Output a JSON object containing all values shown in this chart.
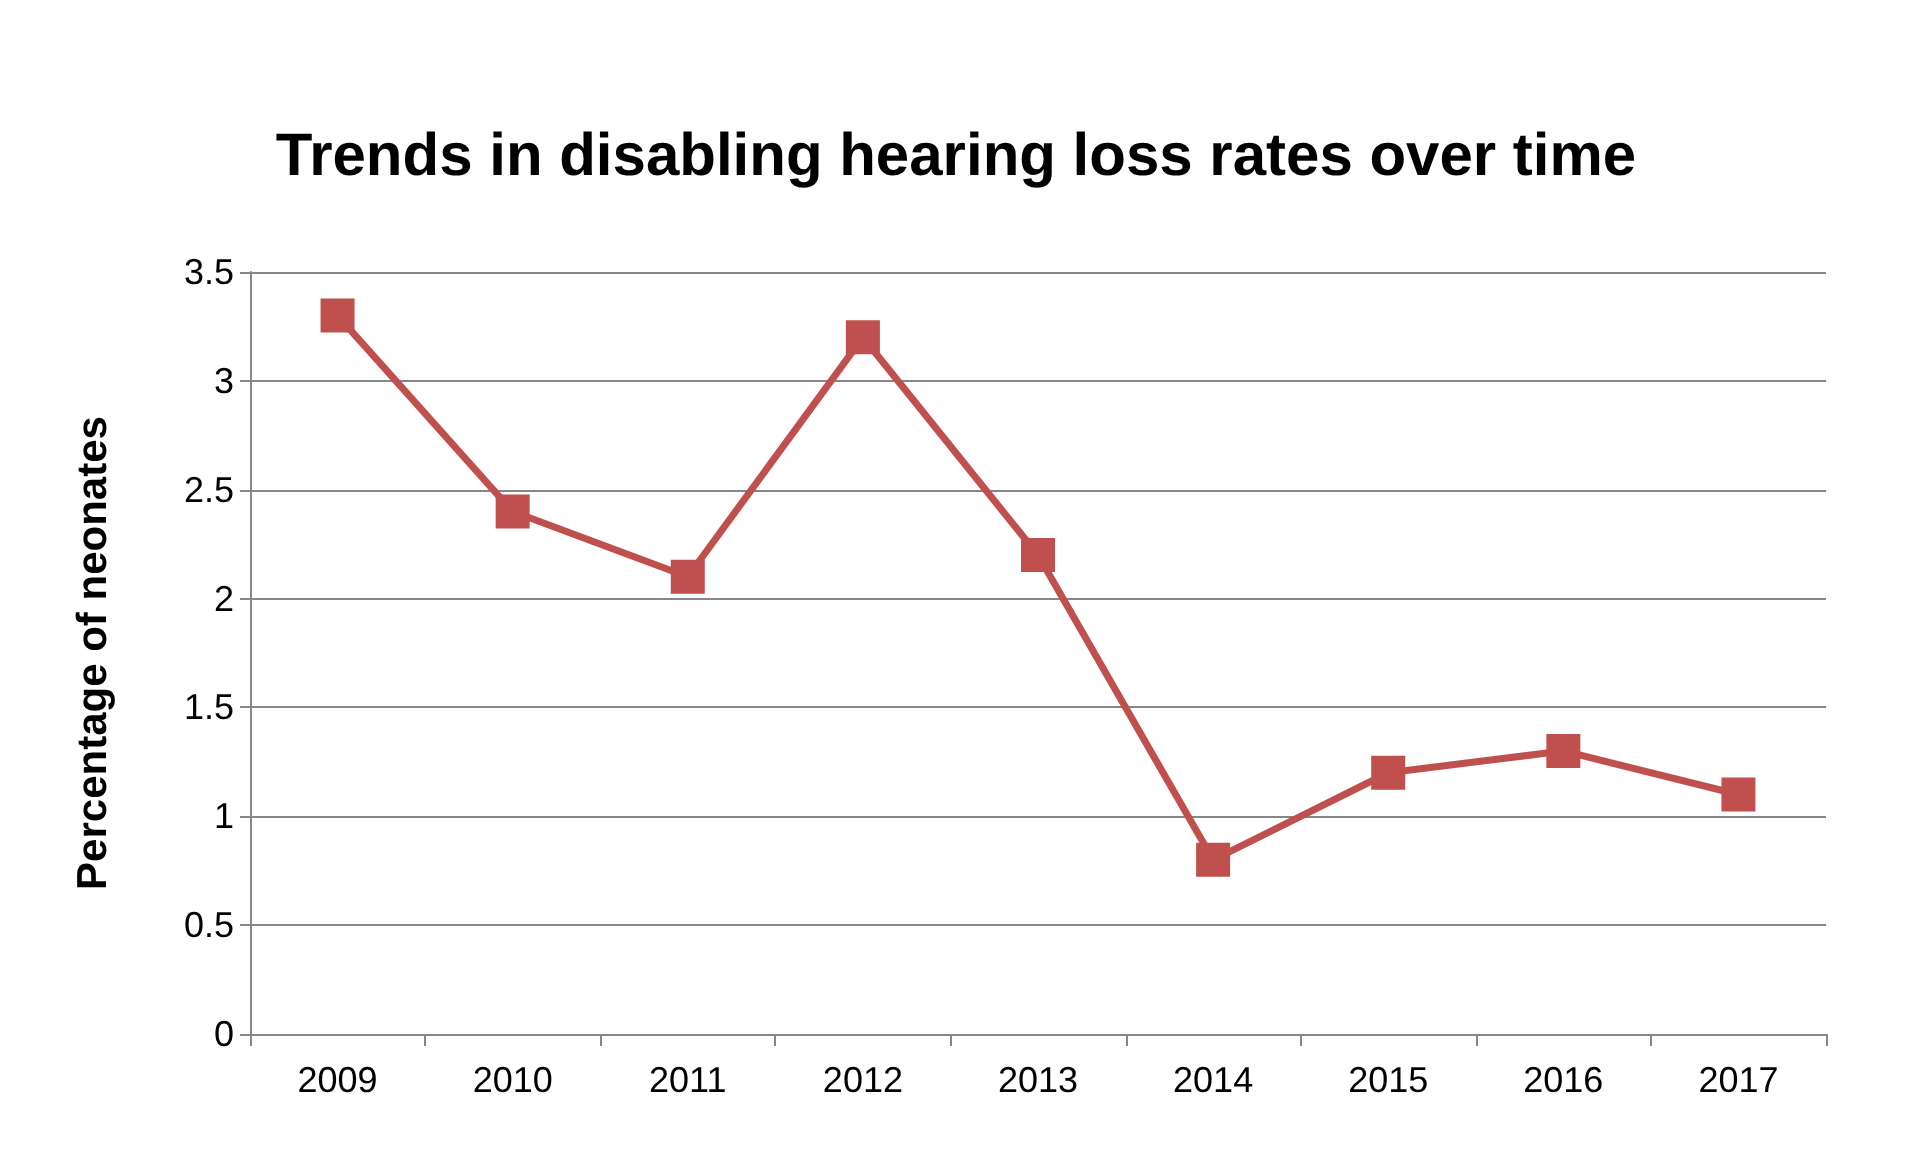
{
  "chart_data": {
    "type": "line",
    "title": "Trends in disabling hearing loss rates over time",
    "ylabel": "Percentage of neonates",
    "categories": [
      "2009",
      "2010",
      "2011",
      "2012",
      "2013",
      "2014",
      "2015",
      "2016",
      "2017"
    ],
    "series": [
      {
        "color": "#c0504d",
        "values": [
          3.3,
          2.4,
          2.1,
          3.2,
          2.2,
          0.8,
          1.2,
          1.3,
          1.1
        ]
      }
    ],
    "ylim": [
      0,
      3.5
    ],
    "yticks": [
      0,
      0.5,
      1,
      1.5,
      2,
      2.5,
      3,
      3.5
    ],
    "grid": "y",
    "marker": "square",
    "line_style": "solid"
  }
}
